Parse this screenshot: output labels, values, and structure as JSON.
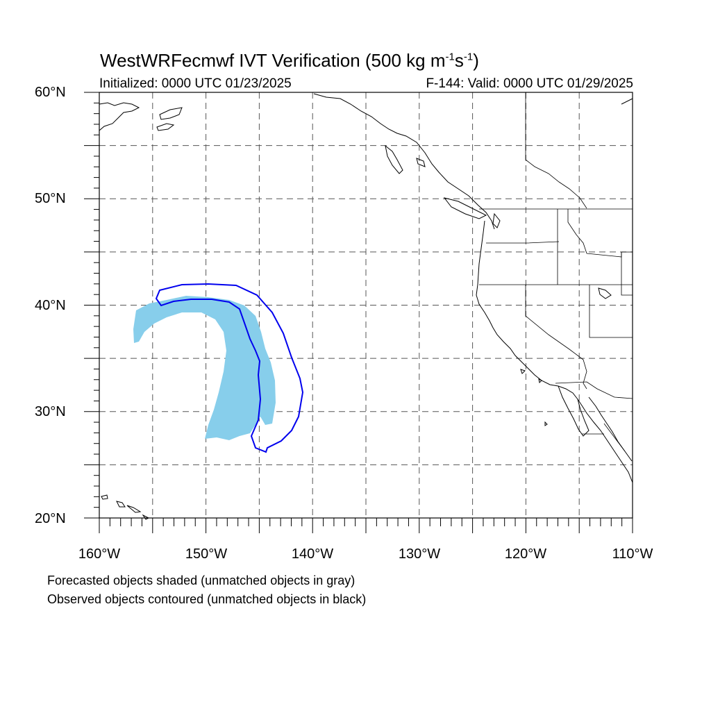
{
  "title": {
    "main": "WestWRFecmwf IVT Verification (500 kg m",
    "sup1": "-1",
    "mid": "s",
    "sup2": "-1",
    "end": ")"
  },
  "subtitle_left": "Initialized: 0000 UTC 01/23/2025",
  "subtitle_right": "F-144: Valid: 0000 UTC 01/29/2025",
  "lat_labels": [
    "60°N",
    "50°N",
    "40°N",
    "30°N",
    "20°N"
  ],
  "lon_labels": [
    "160°W",
    "150°W",
    "140°W",
    "130°W",
    "120°W",
    "110°W"
  ],
  "notes": [
    "Forecasted objects shaded (unmatched objects in gray)",
    "Observed objects contoured (unmatched objects in black)"
  ],
  "colors": {
    "forecast_fill": "#87ceeb",
    "observed_contour": "#0000ee",
    "coastline": "#000000",
    "grid": "#555555"
  },
  "map_extent": {
    "lon": [
      -160,
      -110
    ],
    "lat": [
      20,
      60
    ]
  },
  "grid_spacing_deg": 5
}
